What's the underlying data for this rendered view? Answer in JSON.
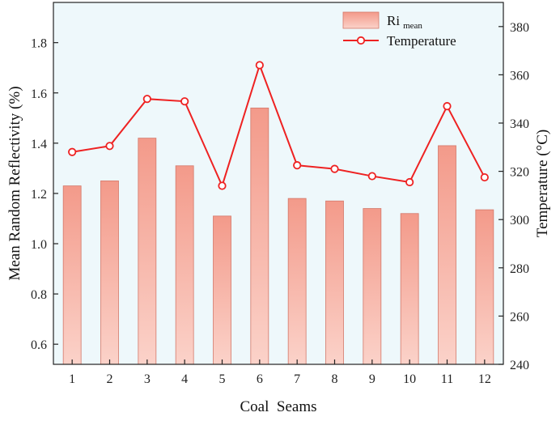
{
  "chart_data": {
    "type": "bar",
    "categories": [
      "1",
      "2",
      "3",
      "4",
      "5",
      "6",
      "7",
      "8",
      "9",
      "10",
      "11",
      "12"
    ],
    "series": [
      {
        "name": "Ri mean",
        "axis": "left",
        "values": [
          1.23,
          1.25,
          1.42,
          1.31,
          1.11,
          1.54,
          1.18,
          1.17,
          1.14,
          1.12,
          1.39,
          1.135
        ]
      },
      {
        "name": "Temperature",
        "axis": "right",
        "kind": "line",
        "values": [
          328,
          330.5,
          350,
          349,
          314,
          364,
          322.5,
          321,
          318,
          315.5,
          347,
          317.5
        ]
      }
    ],
    "legend": {
      "bar_main": "Ri",
      "bar_sub": "mean",
      "line_label": "Temperature",
      "position": "top-right"
    },
    "xlabel": "Coal  Seams",
    "ylabel": "Mean Random Reflectivity (%)",
    "y2label": "Temperature (°C)",
    "ylim": [
      0.52,
      1.96
    ],
    "y2lim": [
      240,
      390
    ],
    "yticks": [
      "0.6",
      "0.8",
      "1.0",
      "1.2",
      "1.4",
      "1.6",
      "1.8"
    ],
    "y2ticks": [
      "240",
      "260",
      "280",
      "300",
      "320",
      "340",
      "360",
      "380"
    ],
    "colors": {
      "plot_bg": "#eef8fb",
      "bar_fill_top": "#f39a8a",
      "bar_fill_bottom": "#fbd2c9",
      "bar_stroke": "#d4786a",
      "line": "#ee2222",
      "marker_fill": "#ffffff"
    }
  }
}
